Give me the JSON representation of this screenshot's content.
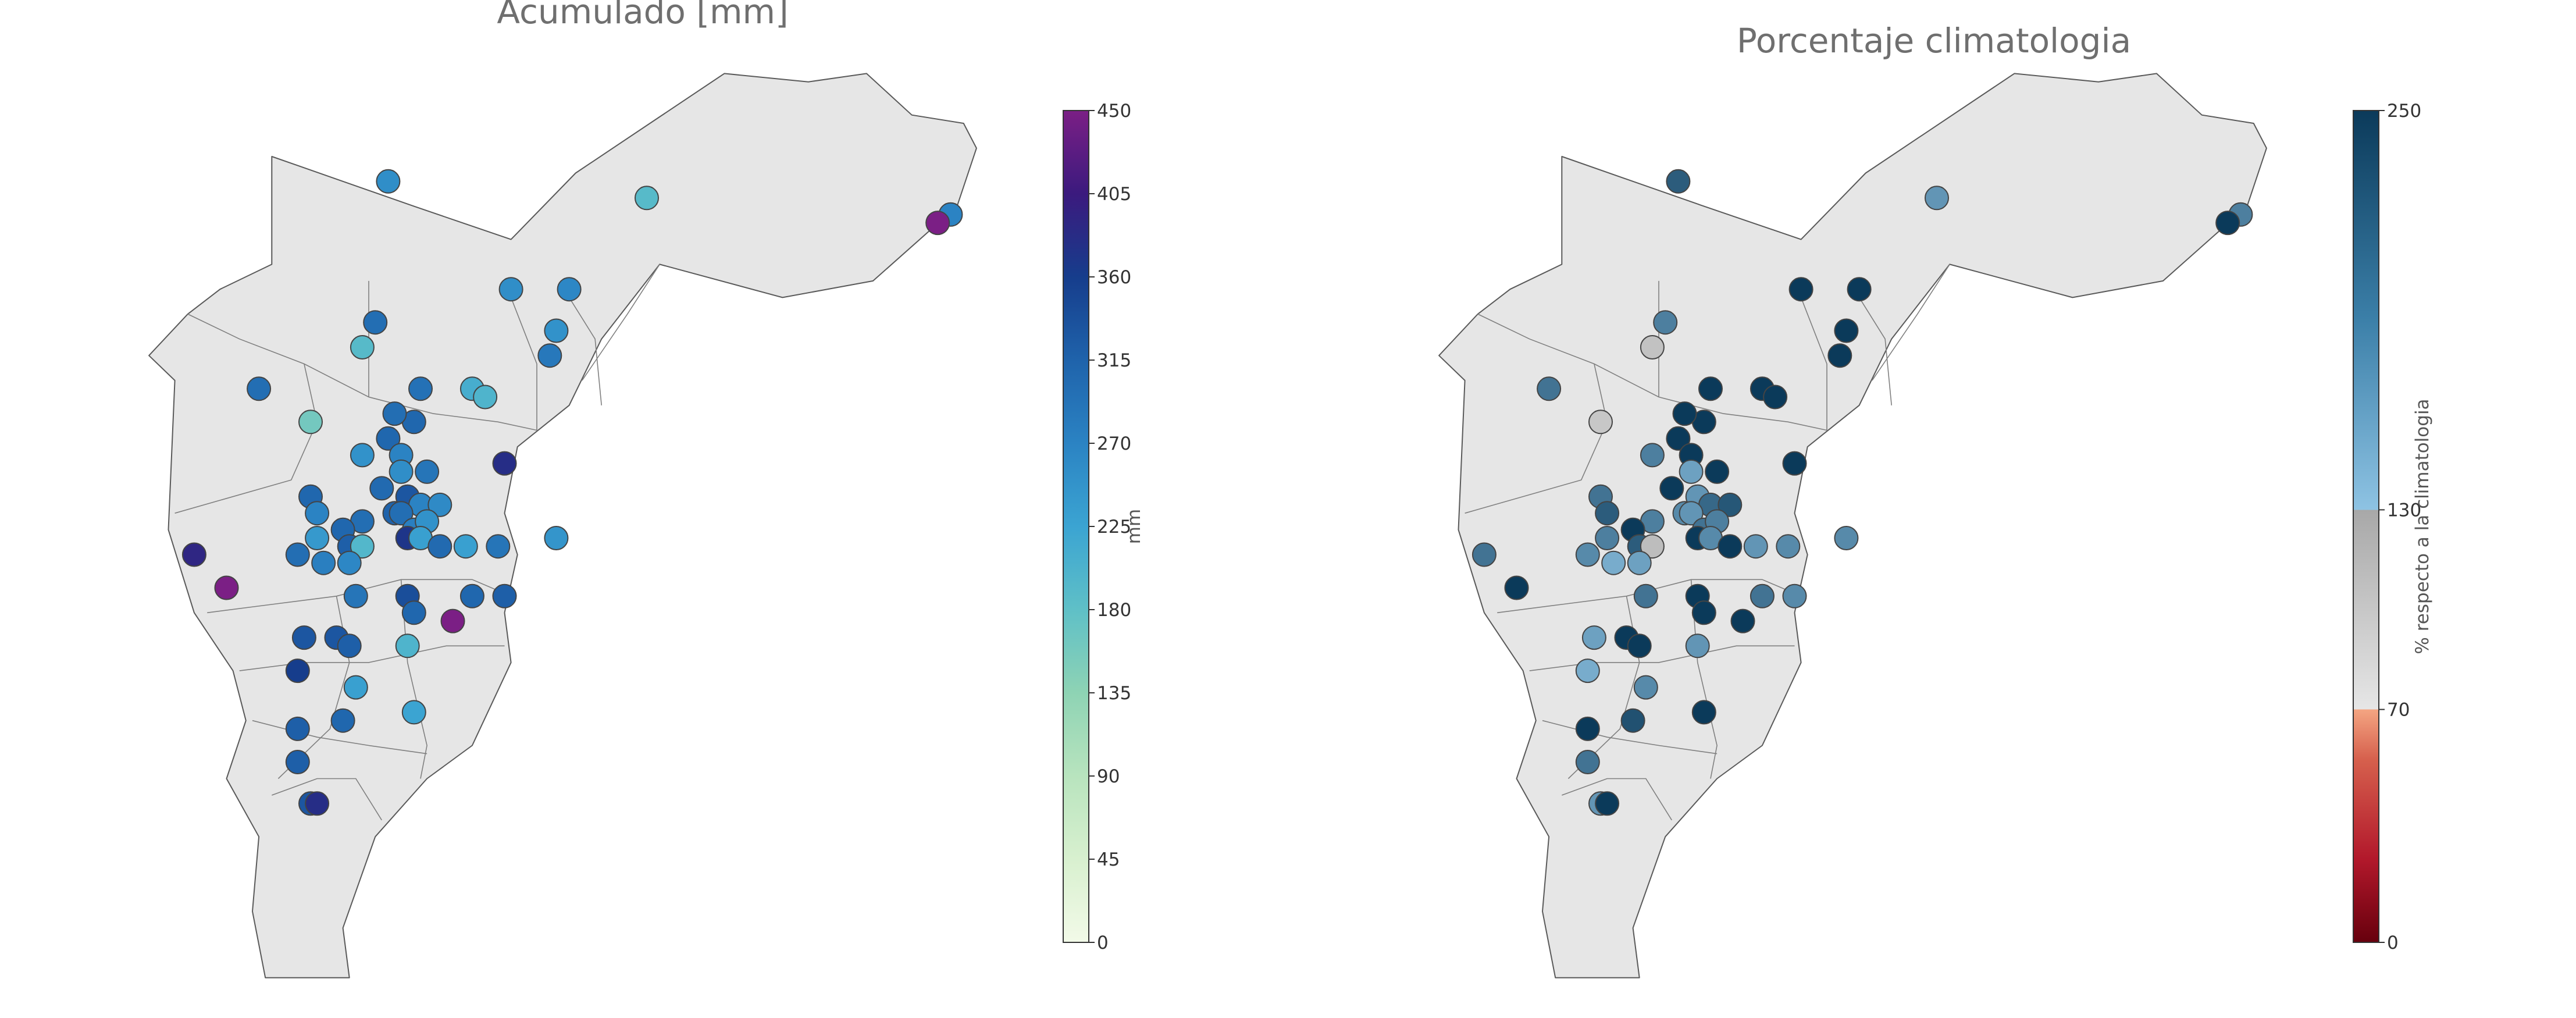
{
  "panels": [
    {
      "title": "Acumulado [mm]",
      "colorbar": {
        "label": "mm",
        "ticks": [
          "0",
          "45",
          "90",
          "135",
          "180",
          "225",
          "270",
          "315",
          "360",
          "405",
          "450"
        ],
        "stops": [
          "#f2fae8",
          "#d8f0cf",
          "#b8e4be",
          "#8ed3b4",
          "#5fc0c7",
          "#3ba4d2",
          "#2b83c3",
          "#1f63ab",
          "#163d8c",
          "#3b1a7e",
          "#7b1f85"
        ]
      },
      "stations": [
        {
          "lon": -75.27,
          "lat": 6.74,
          "v": 255
        },
        {
          "lon": -74.87,
          "lat": 6.72,
          "v": 190
        },
        {
          "lon": -74.4,
          "lat": 6.7,
          "v": 270
        },
        {
          "lon": -74.42,
          "lat": 6.69,
          "v": 450
        },
        {
          "lon": -75.29,
          "lat": 6.57,
          "v": 300
        },
        {
          "lon": -75.47,
          "lat": 6.49,
          "v": 300
        },
        {
          "lon": -75.08,
          "lat": 6.61,
          "v": 255
        },
        {
          "lon": -74.99,
          "lat": 6.61,
          "v": 265
        },
        {
          "lon": -75.31,
          "lat": 6.54,
          "v": 190
        },
        {
          "lon": -75.01,
          "lat": 6.56,
          "v": 250
        },
        {
          "lon": -75.02,
          "lat": 6.53,
          "v": 285
        },
        {
          "lon": -75.22,
          "lat": 6.49,
          "v": 295
        },
        {
          "lon": -75.14,
          "lat": 6.49,
          "v": 210
        },
        {
          "lon": -75.12,
          "lat": 6.48,
          "v": 200
        },
        {
          "lon": -75.39,
          "lat": 6.45,
          "v": 160
        },
        {
          "lon": -75.23,
          "lat": 6.45,
          "v": 310
        },
        {
          "lon": -75.26,
          "lat": 6.46,
          "v": 300
        },
        {
          "lon": -75.27,
          "lat": 6.43,
          "v": 310
        },
        {
          "lon": -75.31,
          "lat": 6.41,
          "v": 250
        },
        {
          "lon": -75.25,
          "lat": 6.41,
          "v": 270
        },
        {
          "lon": -75.25,
          "lat": 6.39,
          "v": 255
        },
        {
          "lon": -75.21,
          "lat": 6.39,
          "v": 290
        },
        {
          "lon": -75.09,
          "lat": 6.4,
          "v": 380
        },
        {
          "lon": -75.39,
          "lat": 6.36,
          "v": 310
        },
        {
          "lon": -75.28,
          "lat": 6.37,
          "v": 305
        },
        {
          "lon": -75.24,
          "lat": 6.36,
          "v": 330
        },
        {
          "lon": -75.22,
          "lat": 6.35,
          "v": 270
        },
        {
          "lon": -75.19,
          "lat": 6.35,
          "v": 260
        },
        {
          "lon": -75.38,
          "lat": 6.34,
          "v": 270
        },
        {
          "lon": -75.31,
          "lat": 6.33,
          "v": 300
        },
        {
          "lon": -75.26,
          "lat": 6.34,
          "v": 315
        },
        {
          "lon": -75.25,
          "lat": 6.34,
          "v": 300
        },
        {
          "lon": -75.23,
          "lat": 6.32,
          "v": 275
        },
        {
          "lon": -75.21,
          "lat": 6.33,
          "v": 250
        },
        {
          "lon": -75.38,
          "lat": 6.31,
          "v": 240
        },
        {
          "lon": -75.34,
          "lat": 6.32,
          "v": 310
        },
        {
          "lon": -75.24,
          "lat": 6.31,
          "v": 370
        },
        {
          "lon": -75.22,
          "lat": 6.31,
          "v": 230
        },
        {
          "lon": -75.01,
          "lat": 6.31,
          "v": 245
        },
        {
          "lon": -75.33,
          "lat": 6.3,
          "v": 320
        },
        {
          "lon": -75.31,
          "lat": 6.3,
          "v": 195
        },
        {
          "lon": -75.19,
          "lat": 6.3,
          "v": 305
        },
        {
          "lon": -75.15,
          "lat": 6.3,
          "v": 230
        },
        {
          "lon": -75.1,
          "lat": 6.3,
          "v": 290
        },
        {
          "lon": -75.57,
          "lat": 6.29,
          "v": 390
        },
        {
          "lon": -75.41,
          "lat": 6.29,
          "v": 300
        },
        {
          "lon": -75.37,
          "lat": 6.28,
          "v": 275
        },
        {
          "lon": -75.33,
          "lat": 6.28,
          "v": 265
        },
        {
          "lon": -75.52,
          "lat": 6.25,
          "v": 450
        },
        {
          "lon": -75.32,
          "lat": 6.24,
          "v": 290
        },
        {
          "lon": -75.24,
          "lat": 6.24,
          "v": 340
        },
        {
          "lon": -75.23,
          "lat": 6.22,
          "v": 310
        },
        {
          "lon": -75.14,
          "lat": 6.24,
          "v": 310
        },
        {
          "lon": -75.09,
          "lat": 6.24,
          "v": 320
        },
        {
          "lon": -75.17,
          "lat": 6.21,
          "v": 450
        },
        {
          "lon": -75.4,
          "lat": 6.19,
          "v": 330
        },
        {
          "lon": -75.35,
          "lat": 6.19,
          "v": 330
        },
        {
          "lon": -75.33,
          "lat": 6.18,
          "v": 320
        },
        {
          "lon": -75.24,
          "lat": 6.18,
          "v": 200
        },
        {
          "lon": -75.41,
          "lat": 6.15,
          "v": 360
        },
        {
          "lon": -75.32,
          "lat": 6.13,
          "v": 230
        },
        {
          "lon": -75.41,
          "lat": 6.08,
          "v": 320
        },
        {
          "lon": -75.34,
          "lat": 6.09,
          "v": 310
        },
        {
          "lon": -75.23,
          "lat": 6.1,
          "v": 225
        },
        {
          "lon": -75.41,
          "lat": 6.04,
          "v": 320
        },
        {
          "lon": -75.39,
          "lat": 5.99,
          "v": 330
        },
        {
          "lon": -75.38,
          "lat": 5.99,
          "v": 380
        }
      ]
    },
    {
      "title": "Porcentaje climatologia",
      "colorbar": {
        "label": "% respecto a la climatologia",
        "ticks": [
          "0",
          "70",
          "130",
          "250"
        ],
        "tick_values": [
          0,
          70,
          130,
          250
        ],
        "min": 0,
        "max": 250
      },
      "stations": [
        {
          "lon": -75.27,
          "lat": 6.74,
          "v": 220
        },
        {
          "lon": -74.87,
          "lat": 6.72,
          "v": 170
        },
        {
          "lon": -74.4,
          "lat": 6.7,
          "v": 190
        },
        {
          "lon": -74.42,
          "lat": 6.69,
          "v": 250
        },
        {
          "lon": -75.29,
          "lat": 6.57,
          "v": 190
        },
        {
          "lon": -75.47,
          "lat": 6.49,
          "v": 200
        },
        {
          "lon": -75.08,
          "lat": 6.61,
          "v": 250
        },
        {
          "lon": -74.99,
          "lat": 6.61,
          "v": 250
        },
        {
          "lon": -75.31,
          "lat": 6.54,
          "v": 105
        },
        {
          "lon": -75.01,
          "lat": 6.56,
          "v": 250
        },
        {
          "lon": -75.02,
          "lat": 6.53,
          "v": 250
        },
        {
          "lon": -75.22,
          "lat": 6.49,
          "v": 250
        },
        {
          "lon": -75.14,
          "lat": 6.49,
          "v": 250
        },
        {
          "lon": -75.12,
          "lat": 6.48,
          "v": 250
        },
        {
          "lon": -75.39,
          "lat": 6.45,
          "v": 100
        },
        {
          "lon": -75.23,
          "lat": 6.45,
          "v": 250
        },
        {
          "lon": -75.26,
          "lat": 6.46,
          "v": 250
        },
        {
          "lon": -75.27,
          "lat": 6.43,
          "v": 250
        },
        {
          "lon": -75.31,
          "lat": 6.41,
          "v": 190
        },
        {
          "lon": -75.25,
          "lat": 6.41,
          "v": 250
        },
        {
          "lon": -75.25,
          "lat": 6.39,
          "v": 160
        },
        {
          "lon": -75.21,
          "lat": 6.39,
          "v": 250
        },
        {
          "lon": -75.09,
          "lat": 6.4,
          "v": 250
        },
        {
          "lon": -75.39,
          "lat": 6.36,
          "v": 200
        },
        {
          "lon": -75.28,
          "lat": 6.37,
          "v": 250
        },
        {
          "lon": -75.24,
          "lat": 6.36,
          "v": 170
        },
        {
          "lon": -75.22,
          "lat": 6.35,
          "v": 210
        },
        {
          "lon": -75.19,
          "lat": 6.35,
          "v": 225
        },
        {
          "lon": -75.38,
          "lat": 6.34,
          "v": 220
        },
        {
          "lon": -75.31,
          "lat": 6.33,
          "v": 190
        },
        {
          "lon": -75.26,
          "lat": 6.34,
          "v": 180
        },
        {
          "lon": -75.25,
          "lat": 6.34,
          "v": 170
        },
        {
          "lon": -75.23,
          "lat": 6.32,
          "v": 200
        },
        {
          "lon": -75.21,
          "lat": 6.33,
          "v": 190
        },
        {
          "lon": -75.38,
          "lat": 6.31,
          "v": 190
        },
        {
          "lon": -75.34,
          "lat": 6.32,
          "v": 250
        },
        {
          "lon": -75.24,
          "lat": 6.31,
          "v": 250
        },
        {
          "lon": -75.22,
          "lat": 6.31,
          "v": 180
        },
        {
          "lon": -75.01,
          "lat": 6.31,
          "v": 180
        },
        {
          "lon": -75.33,
          "lat": 6.3,
          "v": 220
        },
        {
          "lon": -75.31,
          "lat": 6.3,
          "v": 110
        },
        {
          "lon": -75.19,
          "lat": 6.3,
          "v": 250
        },
        {
          "lon": -75.15,
          "lat": 6.3,
          "v": 170
        },
        {
          "lon": -75.1,
          "lat": 6.3,
          "v": 180
        },
        {
          "lon": -75.57,
          "lat": 6.29,
          "v": 200
        },
        {
          "lon": -75.41,
          "lat": 6.29,
          "v": 180
        },
        {
          "lon": -75.37,
          "lat": 6.28,
          "v": 150
        },
        {
          "lon": -75.33,
          "lat": 6.28,
          "v": 160
        },
        {
          "lon": -75.52,
          "lat": 6.25,
          "v": 250
        },
        {
          "lon": -75.32,
          "lat": 6.24,
          "v": 200
        },
        {
          "lon": -75.24,
          "lat": 6.24,
          "v": 250
        },
        {
          "lon": -75.23,
          "lat": 6.22,
          "v": 250
        },
        {
          "lon": -75.14,
          "lat": 6.24,
          "v": 200
        },
        {
          "lon": -75.09,
          "lat": 6.24,
          "v": 180
        },
        {
          "lon": -75.17,
          "lat": 6.21,
          "v": 250
        },
        {
          "lon": -75.4,
          "lat": 6.19,
          "v": 160
        },
        {
          "lon": -75.35,
          "lat": 6.19,
          "v": 250
        },
        {
          "lon": -75.33,
          "lat": 6.18,
          "v": 250
        },
        {
          "lon": -75.24,
          "lat": 6.18,
          "v": 170
        },
        {
          "lon": -75.41,
          "lat": 6.15,
          "v": 150
        },
        {
          "lon": -75.32,
          "lat": 6.13,
          "v": 180
        },
        {
          "lon": -75.41,
          "lat": 6.08,
          "v": 250
        },
        {
          "lon": -75.34,
          "lat": 6.09,
          "v": 230
        },
        {
          "lon": -75.23,
          "lat": 6.1,
          "v": 250
        },
        {
          "lon": -75.41,
          "lat": 6.04,
          "v": 200
        },
        {
          "lon": -75.39,
          "lat": 5.99,
          "v": 170
        },
        {
          "lon": -75.38,
          "lat": 5.99,
          "v": 250
        }
      ]
    }
  ],
  "map": {
    "region_fill": "#e6e6e6",
    "region_outline": [
      [
        -75.45,
        6.77
      ],
      [
        -75.34,
        6.74
      ],
      [
        -75.23,
        6.71
      ],
      [
        -75.08,
        6.67
      ],
      [
        -74.98,
        6.75
      ],
      [
        -74.75,
        6.87
      ],
      [
        -74.62,
        6.86
      ],
      [
        -74.53,
        6.87
      ],
      [
        -74.46,
        6.82
      ],
      [
        -74.38,
        6.81
      ],
      [
        -74.36,
        6.78
      ],
      [
        -74.39,
        6.71
      ],
      [
        -74.52,
        6.62
      ],
      [
        -74.66,
        6.6
      ],
      [
        -74.85,
        6.64
      ],
      [
        -74.94,
        6.55
      ],
      [
        -74.99,
        6.47
      ],
      [
        -75.07,
        6.42
      ],
      [
        -75.09,
        6.34
      ],
      [
        -75.07,
        6.29
      ],
      [
        -75.09,
        6.22
      ],
      [
        -75.08,
        6.16
      ],
      [
        -75.14,
        6.06
      ],
      [
        -75.21,
        6.02
      ],
      [
        -75.29,
        5.95
      ],
      [
        -75.34,
        5.84
      ],
      [
        -75.33,
        5.78
      ],
      [
        -75.46,
        5.78
      ],
      [
        -75.48,
        5.86
      ],
      [
        -75.47,
        5.95
      ],
      [
        -75.52,
        6.02
      ],
      [
        -75.49,
        6.09
      ],
      [
        -75.51,
        6.15
      ],
      [
        -75.57,
        6.22
      ],
      [
        -75.61,
        6.32
      ],
      [
        -75.6,
        6.5
      ],
      [
        -75.64,
        6.53
      ],
      [
        -75.58,
        6.58
      ],
      [
        -75.53,
        6.61
      ],
      [
        -75.45,
        6.64
      ],
      [
        -75.45,
        6.77
      ]
    ],
    "municipal_lines": [
      [
        [
          -75.58,
          6.58
        ],
        [
          -75.5,
          6.55
        ],
        [
          -75.4,
          6.52
        ],
        [
          -75.3,
          6.48
        ],
        [
          -75.2,
          6.46
        ],
        [
          -75.1,
          6.45
        ],
        [
          -75.04,
          6.44
        ]
      ],
      [
        [
          -75.4,
          6.52
        ],
        [
          -75.38,
          6.45
        ],
        [
          -75.42,
          6.38
        ],
        [
          -75.6,
          6.34
        ]
      ],
      [
        [
          -75.3,
          6.62
        ],
        [
          -75.3,
          6.55
        ],
        [
          -75.3,
          6.48
        ]
      ],
      [
        [
          -75.08,
          6.6
        ],
        [
          -75.04,
          6.52
        ],
        [
          -75.04,
          6.44
        ]
      ],
      [
        [
          -74.99,
          6.6
        ],
        [
          -74.95,
          6.55
        ],
        [
          -74.94,
          6.47
        ]
      ],
      [
        [
          -74.85,
          6.64
        ],
        [
          -74.9,
          6.58
        ],
        [
          -74.97,
          6.5
        ]
      ],
      [
        [
          -75.55,
          6.22
        ],
        [
          -75.45,
          6.23
        ],
        [
          -75.35,
          6.24
        ],
        [
          -75.25,
          6.26
        ],
        [
          -75.14,
          6.26
        ],
        [
          -75.08,
          6.24
        ]
      ],
      [
        [
          -75.5,
          6.15
        ],
        [
          -75.4,
          6.16
        ],
        [
          -75.3,
          6.16
        ],
        [
          -75.18,
          6.18
        ],
        [
          -75.09,
          6.18
        ]
      ],
      [
        [
          -75.35,
          6.24
        ],
        [
          -75.33,
          6.16
        ],
        [
          -75.36,
          6.08
        ],
        [
          -75.44,
          6.02
        ]
      ],
      [
        [
          -75.25,
          6.26
        ],
        [
          -75.24,
          6.16
        ],
        [
          -75.21,
          6.06
        ],
        [
          -75.22,
          6.02
        ]
      ],
      [
        [
          -75.48,
          6.09
        ],
        [
          -75.38,
          6.07
        ],
        [
          -75.3,
          6.06
        ],
        [
          -75.21,
          6.05
        ]
      ],
      [
        [
          -75.45,
          6.0
        ],
        [
          -75.38,
          6.02
        ],
        [
          -75.32,
          6.02
        ],
        [
          -75.28,
          5.97
        ]
      ]
    ]
  }
}
